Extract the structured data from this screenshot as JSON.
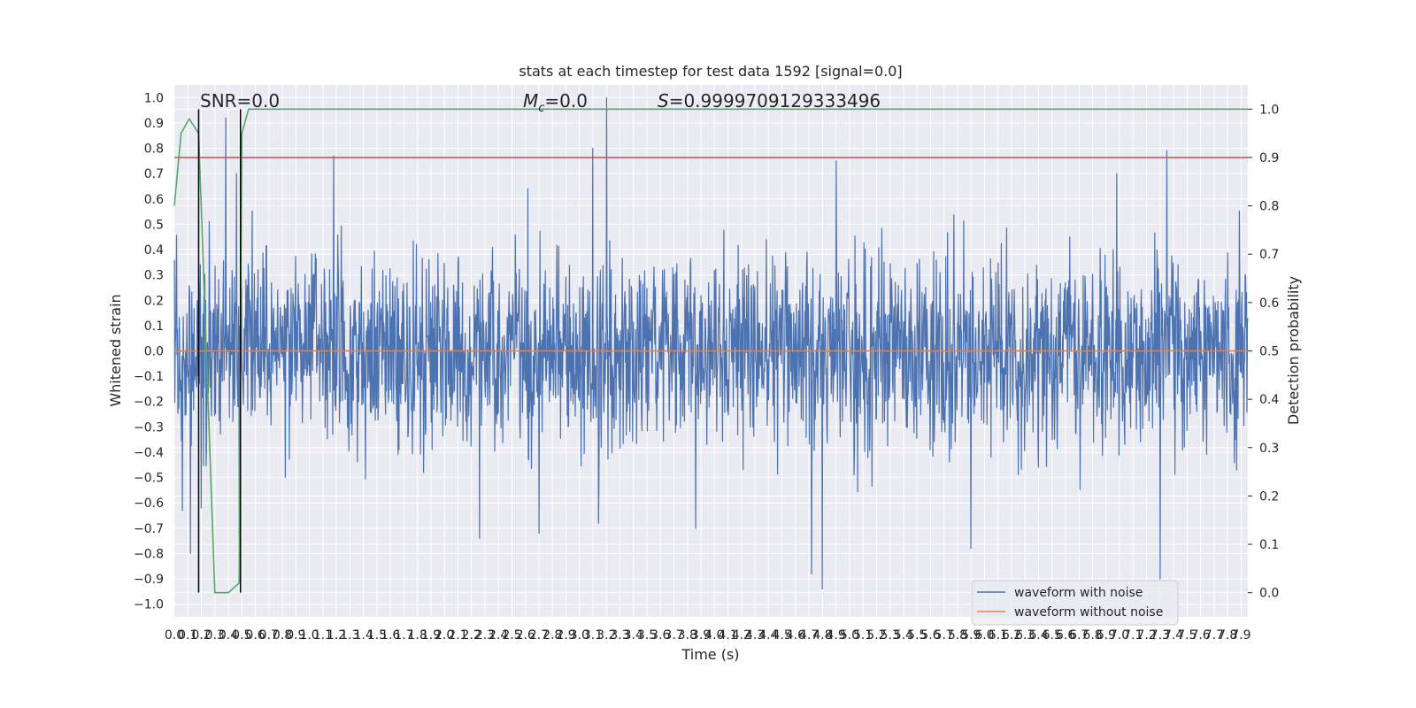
{
  "chart_data": {
    "type": "line",
    "title": "stats at each timestep for test data 1592 [signal=0.0]",
    "xlabel": "Time (s)",
    "ylabel": "Whitened strain",
    "y2label": "Detection probability",
    "xlim": [
      0.0,
      7.95
    ],
    "ylim": [
      -1.05,
      1.05
    ],
    "y2lim": [
      -0.05,
      1.05
    ],
    "xticks": [
      "0.0",
      "0.1",
      "0.2",
      "0.3",
      "0.4",
      "0.5",
      "0.6",
      "0.7",
      "0.8",
      "0.9",
      "1.0",
      "1.1",
      "1.2",
      "1.3",
      "1.4",
      "1.5",
      "1.6",
      "1.7",
      "1.8",
      "1.9",
      "2.0",
      "2.1",
      "2.2",
      "2.3",
      "2.4",
      "2.5",
      "2.6",
      "2.7",
      "2.8",
      "2.9",
      "3.0",
      "3.1",
      "3.2",
      "3.3",
      "3.4",
      "3.5",
      "3.6",
      "3.7",
      "3.8",
      "3.9",
      "4.0",
      "4.1",
      "4.2",
      "4.3",
      "4.4",
      "4.5",
      "4.6",
      "4.7",
      "4.8",
      "4.9",
      "5.0",
      "5.1",
      "5.2",
      "5.3",
      "5.4",
      "5.5",
      "5.6",
      "5.7",
      "5.8",
      "5.9",
      "6.0",
      "6.1",
      "6.2",
      "6.3",
      "6.4",
      "6.5",
      "6.6",
      "6.7",
      "6.8",
      "6.9",
      "7.0",
      "7.1",
      "7.2",
      "7.3",
      "7.4",
      "7.5",
      "7.6",
      "7.7",
      "7.8",
      "7.9"
    ],
    "yticks": [
      "1.0",
      "0.9",
      "0.8",
      "0.7",
      "0.6",
      "0.5",
      "0.4",
      "0.3",
      "0.2",
      "0.1",
      "0.0",
      "−0.1",
      "−0.2",
      "−0.3",
      "−0.4",
      "−0.5",
      "−0.6",
      "−0.7",
      "−0.8",
      "−0.9",
      "−1.0"
    ],
    "y2ticks": [
      "1.0",
      "0.9",
      "0.8",
      "0.7",
      "0.6",
      "0.5",
      "0.4",
      "0.3",
      "0.2",
      "0.1",
      "0.0"
    ],
    "annotations": {
      "snr": "SNR=0.0",
      "mc_symbol": "M",
      "mc_sub": "c",
      "mc_value": "=0.0",
      "s_symbol": "S",
      "s_value": "=0.9999709129333496"
    },
    "legend": {
      "placement": "lower-right",
      "entries": [
        "waveform with noise",
        "waveform without noise"
      ]
    },
    "grid": true,
    "colors": {
      "noise": "#4c72b0",
      "clean": "#dd8452",
      "probability": "#55a868",
      "threshold": "#c44e52",
      "markers": "#000000",
      "axes_bg": "#eaeaf2",
      "grid": "#ffffff"
    },
    "series": [
      {
        "name": "waveform with noise",
        "axis": "left",
        "noise_model": {
          "duration_s": 7.95,
          "samples": 2400,
          "seed": 1592,
          "sigma": 0.26,
          "mean": 0.0
        },
        "peaks": [
          [
            0.06,
            -0.63
          ],
          [
            0.12,
            -0.8
          ],
          [
            0.2,
            -0.62
          ],
          [
            0.38,
            0.92
          ],
          [
            0.46,
            0.7
          ],
          [
            0.48,
            -0.73
          ],
          [
            1.18,
            0.77
          ],
          [
            2.26,
            -0.74
          ],
          [
            2.7,
            -0.72
          ],
          [
            3.1,
            0.8
          ],
          [
            3.14,
            -0.68
          ],
          [
            3.2,
            1.0
          ],
          [
            3.86,
            -0.7
          ],
          [
            4.72,
            -0.88
          ],
          [
            4.8,
            -0.94
          ],
          [
            4.9,
            0.75
          ],
          [
            5.9,
            -0.78
          ],
          [
            7.3,
            -0.9
          ],
          [
            7.35,
            0.79
          ],
          [
            6.98,
            0.7
          ]
        ]
      },
      {
        "name": "waveform without noise",
        "axis": "left",
        "x": [
          0.0,
          7.95
        ],
        "y": [
          0.0,
          0.0
        ]
      },
      {
        "axis": "right",
        "x": [
          0.0,
          0.05,
          0.11,
          0.18,
          0.3,
          0.4,
          0.48,
          0.5,
          0.55,
          7.95
        ],
        "y": [
          0.8,
          0.95,
          0.98,
          0.95,
          0.0,
          0.0,
          0.02,
          0.95,
          1.0,
          1.0
        ]
      },
      {
        "axis": "right",
        "x": [
          0.0,
          7.95
        ],
        "y": [
          0.9,
          0.9
        ]
      }
    ],
    "markers_x": [
      0.18,
      0.49
    ],
    "markers_y2": [
      0.0,
      1.0
    ]
  }
}
